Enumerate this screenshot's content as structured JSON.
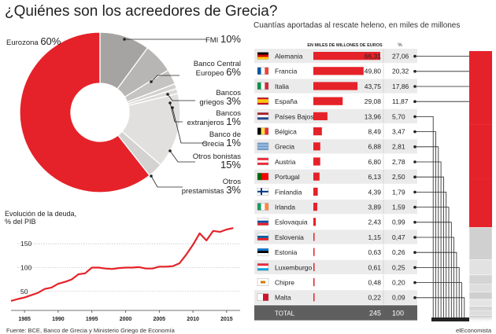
{
  "title": "¿Quiénes son los acreedores de Grecia?",
  "right_title": "Cuantías aportadas al rescate heleno, en miles de millones",
  "footer_source": "Fuente: BCE, Banco de Grecia y Ministerio Griego de Economía",
  "footer_brand": "elEconomista",
  "chart_data": [
    {
      "type": "pie",
      "slices": [
        {
          "label": "Eurozona",
          "value": 60,
          "text": "60%",
          "color": "#e52229"
        },
        {
          "label": "FMI",
          "value": 10,
          "text": "10%",
          "color": "#a6a4a2"
        },
        {
          "label": "Banco Central Europeo",
          "value": 6,
          "text": "6%",
          "color": "#b8b6b4"
        },
        {
          "label": "Bancos griegos",
          "value": 3,
          "text": "3%",
          "color": "#c6c4c2"
        },
        {
          "label": "Bancos extranjeros",
          "value": 1,
          "text": "1%",
          "color": "#d2d0ce"
        },
        {
          "label": "Banco de Grecia",
          "value": 1,
          "text": "1%",
          "color": "#dcdad8"
        },
        {
          "label": "Otros bonistas",
          "value": 15,
          "text": "15%",
          "color": "#e2e0de"
        },
        {
          "label": "Otros prestamistas",
          "value": 3,
          "text": "3%",
          "color": "#d4d2d0"
        }
      ]
    },
    {
      "type": "line",
      "title": "Evolución de la deuda, % del PIB",
      "x_ticks": [
        "1985",
        "1990",
        "1995",
        "2000",
        "2005",
        "2010",
        "2015"
      ],
      "y_ticks": [
        "50",
        "100",
        "150"
      ],
      "xlim": [
        1983,
        2017
      ],
      "ylim": [
        10,
        185
      ],
      "color": "#e52229",
      "x": [
        1983,
        1984,
        1985,
        1986,
        1987,
        1988,
        1989,
        1990,
        1991,
        1992,
        1993,
        1994,
        1995,
        1996,
        1997,
        1998,
        1999,
        2000,
        2001,
        2002,
        2003,
        2004,
        2005,
        2006,
        2007,
        2008,
        2009,
        2010,
        2011,
        2012,
        2013,
        2014,
        2015,
        2016
      ],
      "y": [
        30,
        34,
        37,
        42,
        47,
        55,
        58,
        66,
        70,
        75,
        86,
        88,
        100,
        100,
        98,
        97,
        99,
        100,
        100,
        101,
        98,
        98,
        102,
        102,
        103,
        109,
        127,
        148,
        172,
        157,
        177,
        175,
        180,
        183
      ]
    },
    {
      "type": "bar",
      "header_value": "EN MILES DE MILLONES DE EUROS",
      "header_pct": "%",
      "color": "#e52229",
      "xlim": [
        0,
        66.31
      ],
      "rows": [
        {
          "country": "Alemania",
          "value": 66.31,
          "value_text": "66,31",
          "pct": 27.06,
          "pct_text": "27,06",
          "flag": "de"
        },
        {
          "country": "Francia",
          "value": 49.8,
          "value_text": "49,80",
          "pct": 20.32,
          "pct_text": "20,32",
          "flag": "fr"
        },
        {
          "country": "Italia",
          "value": 43.75,
          "value_text": "43,75",
          "pct": 17.86,
          "pct_text": "17,86",
          "flag": "it"
        },
        {
          "country": "España",
          "value": 29.08,
          "value_text": "29,08",
          "pct": 11.87,
          "pct_text": "11,87",
          "flag": "es"
        },
        {
          "country": "Países Bajos",
          "value": 13.96,
          "value_text": "13,96",
          "pct": 5.7,
          "pct_text": "5,70",
          "flag": "nl"
        },
        {
          "country": "Bélgica",
          "value": 8.49,
          "value_text": "8,49",
          "pct": 3.47,
          "pct_text": "3,47",
          "flag": "be"
        },
        {
          "country": "Grecia",
          "value": 6.88,
          "value_text": "6,88",
          "pct": 2.81,
          "pct_text": "2,81",
          "flag": "gr"
        },
        {
          "country": "Austria",
          "value": 6.8,
          "value_text": "6,80",
          "pct": 2.78,
          "pct_text": "2,78",
          "flag": "at"
        },
        {
          "country": "Portugal",
          "value": 6.13,
          "value_text": "6,13",
          "pct": 2.5,
          "pct_text": "2,50",
          "flag": "pt"
        },
        {
          "country": "Finlandia",
          "value": 4.39,
          "value_text": "4,39",
          "pct": 1.79,
          "pct_text": "1,79",
          "flag": "fi"
        },
        {
          "country": "Irlanda",
          "value": 3.89,
          "value_text": "3,89",
          "pct": 1.59,
          "pct_text": "1,59",
          "flag": "ie"
        },
        {
          "country": "Eslovaquia",
          "value": 2.43,
          "value_text": "2,43",
          "pct": 0.99,
          "pct_text": "0,99",
          "flag": "sk"
        },
        {
          "country": "Eslovenia",
          "value": 1.15,
          "value_text": "1,15",
          "pct": 0.47,
          "pct_text": "0,47",
          "flag": "si"
        },
        {
          "country": "Estonia",
          "value": 0.63,
          "value_text": "0,63",
          "pct": 0.26,
          "pct_text": "0,26",
          "flag": "ee"
        },
        {
          "country": "Luxemburgo",
          "value": 0.61,
          "value_text": "0,61",
          "pct": 0.25,
          "pct_text": "0,25",
          "flag": "lu"
        },
        {
          "country": "Chipre",
          "value": 0.48,
          "value_text": "0,48",
          "pct": 0.2,
          "pct_text": "0,20",
          "flag": "cy"
        },
        {
          "country": "Malta",
          "value": 0.22,
          "value_text": "0,22",
          "pct": 0.09,
          "pct_text": "0,09",
          "flag": "mt"
        }
      ],
      "total_label": "TOTAL",
      "total_value": "245",
      "total_pct": "100"
    }
  ]
}
